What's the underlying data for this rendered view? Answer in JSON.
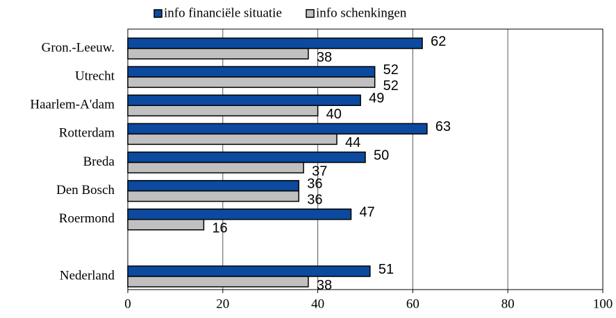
{
  "chart_data": {
    "type": "bar",
    "orientation": "horizontal",
    "categories": [
      "Gron.-Leeuw.",
      "Utrecht",
      "Haarlem-A'dam",
      "Rotterdam",
      "Breda",
      "Den Bosch",
      "Roermond",
      null,
      "Nederland"
    ],
    "series": [
      {
        "name": "info financiële situatie",
        "color": "#0b4a9f",
        "values": [
          62,
          52,
          49,
          63,
          50,
          36,
          47,
          null,
          51
        ]
      },
      {
        "name": "info schenkingen",
        "color": "#c0c0c0",
        "values": [
          38,
          52,
          40,
          44,
          37,
          36,
          16,
          null,
          38
        ]
      }
    ],
    "xlim": [
      0,
      100
    ],
    "xticks": [
      0,
      20,
      40,
      60,
      80,
      100
    ],
    "grid": true,
    "legend": "top"
  }
}
